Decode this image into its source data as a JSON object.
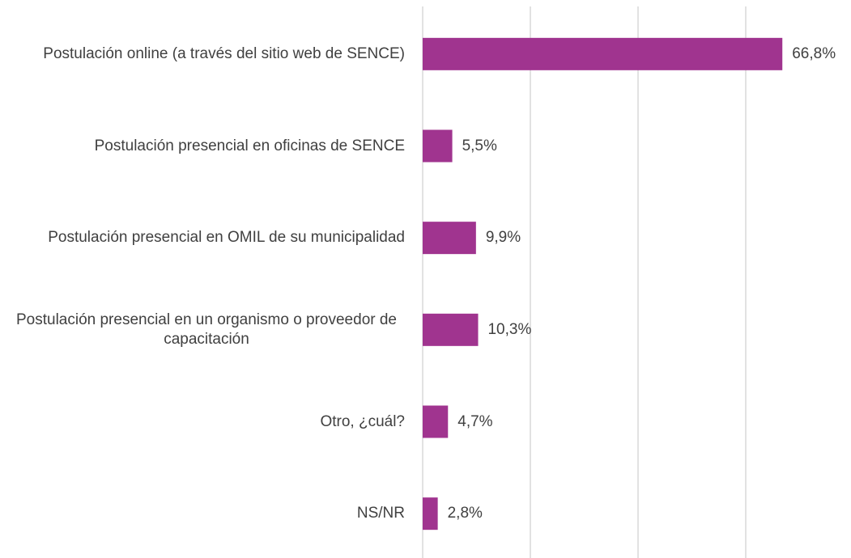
{
  "chart_data": {
    "type": "barh",
    "categories": [
      "Postulación online (a través del sitio web de SENCE)",
      "Postulación presencial en oficinas de SENCE",
      "Postulación presencial en OMIL de su municipalidad",
      "Postulación presencial en un organismo o proveedor de capacitación",
      "Otro, ¿cuál?",
      "NS/NR"
    ],
    "values": [
      66.8,
      5.5,
      9.9,
      10.3,
      4.7,
      2.8
    ],
    "value_labels": [
      "66,8%",
      "5,5%",
      "9,9%",
      "10,3%",
      "4,7%",
      "2,8%"
    ],
    "color": "#a0348f",
    "xlim": [
      0,
      80
    ],
    "xticks": [
      0,
      20,
      40,
      60
    ],
    "grid": true
  }
}
